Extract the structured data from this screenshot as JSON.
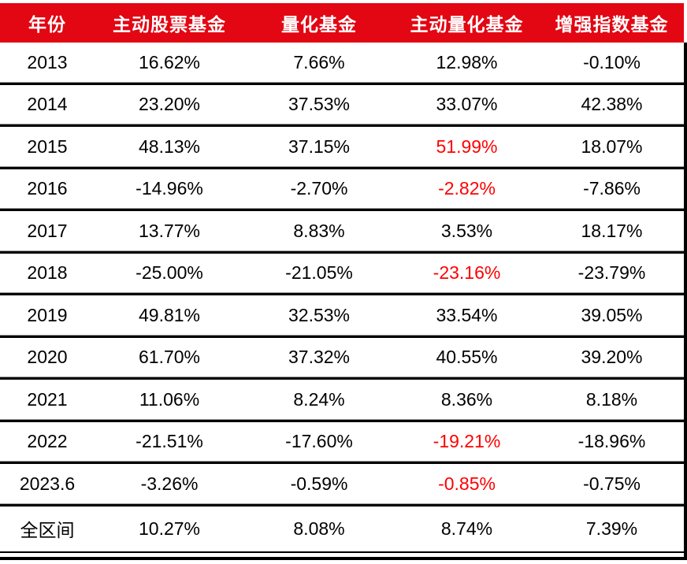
{
  "table": {
    "header": {
      "bg_color": "#E30613",
      "text_color": "#FFFFFF",
      "columns": [
        "年份",
        "主动股票基金",
        "量化基金",
        "主动量化基金",
        "增强指数基金"
      ]
    },
    "colors": {
      "highlight_text": "#FF0000",
      "normal_text": "#000000",
      "separator": "#000000",
      "separator_light": "#9A9A9A"
    },
    "rows": [
      {
        "year": "2013",
        "cells": [
          "16.62%",
          "7.66%",
          "12.98%",
          "-0.10%"
        ],
        "highlight": []
      },
      {
        "year": "2014",
        "cells": [
          "23.20%",
          "37.53%",
          "33.07%",
          "42.38%"
        ],
        "highlight": []
      },
      {
        "year": "2015",
        "cells": [
          "48.13%",
          "37.15%",
          "51.99%",
          "18.07%"
        ],
        "highlight": [
          2
        ]
      },
      {
        "year": "2016",
        "cells": [
          "-14.96%",
          "-2.70%",
          "-2.82%",
          "-7.86%"
        ],
        "highlight": [
          2
        ]
      },
      {
        "year": "2017",
        "cells": [
          "13.77%",
          "8.83%",
          "3.53%",
          "18.17%"
        ],
        "highlight": []
      },
      {
        "year": "2018",
        "cells": [
          "-25.00%",
          "-21.05%",
          "-23.16%",
          "-23.79%"
        ],
        "highlight": [
          2
        ]
      },
      {
        "year": "2019",
        "cells": [
          "49.81%",
          "32.53%",
          "33.54%",
          "39.05%"
        ],
        "highlight": []
      },
      {
        "year": "2020",
        "cells": [
          "61.70%",
          "37.32%",
          "40.55%",
          "39.20%"
        ],
        "highlight": []
      },
      {
        "year": "2021",
        "cells": [
          "11.06%",
          "8.24%",
          "8.36%",
          "8.18%"
        ],
        "highlight": []
      },
      {
        "year": "2022",
        "cells": [
          "-21.51%",
          "-17.60%",
          "-19.21%",
          "-18.96%"
        ],
        "highlight": [
          2
        ]
      },
      {
        "year": "2023.6",
        "cells": [
          "-3.26%",
          "-0.59%",
          "-0.85%",
          "-0.75%"
        ],
        "highlight": [
          2
        ]
      },
      {
        "year": "全区间",
        "cells": [
          "10.27%",
          "8.08%",
          "8.74%",
          "7.39%"
        ],
        "highlight": []
      }
    ]
  },
  "chart_data": {
    "type": "table",
    "columns": [
      "年份",
      "主动股票基金",
      "量化基金",
      "主动量化基金",
      "增强指数基金"
    ],
    "rows": [
      [
        "2013",
        "16.62%",
        "7.66%",
        "12.98%",
        "-0.10%"
      ],
      [
        "2014",
        "23.20%",
        "37.53%",
        "33.07%",
        "42.38%"
      ],
      [
        "2015",
        "48.13%",
        "37.15%",
        "51.99%",
        "18.07%"
      ],
      [
        "2016",
        "-14.96%",
        "-2.70%",
        "-2.82%",
        "-7.86%"
      ],
      [
        "2017",
        "13.77%",
        "8.83%",
        "3.53%",
        "18.17%"
      ],
      [
        "2018",
        "-25.00%",
        "-21.05%",
        "-23.16%",
        "-23.79%"
      ],
      [
        "2019",
        "49.81%",
        "32.53%",
        "33.54%",
        "39.05%"
      ],
      [
        "2020",
        "61.70%",
        "37.32%",
        "40.55%",
        "39.20%"
      ],
      [
        "2021",
        "11.06%",
        "8.24%",
        "8.36%",
        "8.18%"
      ],
      [
        "2022",
        "-21.51%",
        "-17.60%",
        "-19.21%",
        "-18.96%"
      ],
      [
        "2023.6",
        "-3.26%",
        "-0.59%",
        "-0.85%",
        "-0.75%"
      ],
      [
        "全区间",
        "10.27%",
        "8.08%",
        "8.74%",
        "7.39%"
      ]
    ],
    "red_highlighted_cells": [
      {
        "row": "2015",
        "column": "主动量化基金",
        "value": "51.99%"
      },
      {
        "row": "2016",
        "column": "主动量化基金",
        "value": "-2.82%"
      },
      {
        "row": "2018",
        "column": "主动量化基金",
        "value": "-23.16%"
      },
      {
        "row": "2022",
        "column": "主动量化基金",
        "value": "-19.21%"
      },
      {
        "row": "2023.6",
        "column": "主动量化基金",
        "value": "-0.85%"
      }
    ]
  }
}
